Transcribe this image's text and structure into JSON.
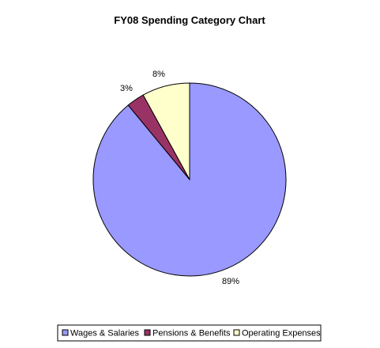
{
  "chart_data": {
    "type": "pie",
    "title": "FY08 Spending Category Chart",
    "categories": [
      "Wages & Salaries",
      "Pensions & Benefits",
      "Operating Expenses"
    ],
    "values": [
      89,
      3,
      8
    ],
    "labels": [
      "89%",
      "3%",
      "8%"
    ],
    "colors": [
      "#9999FF",
      "#993366",
      "#FFFFCC"
    ],
    "legend": "bottom"
  }
}
